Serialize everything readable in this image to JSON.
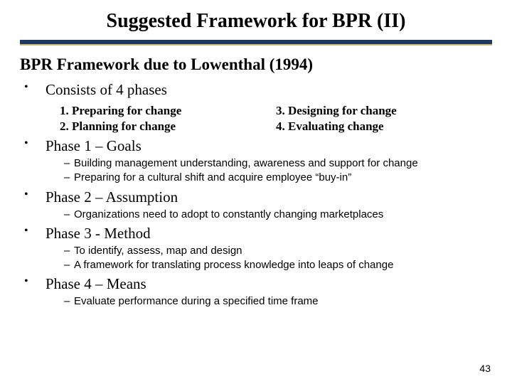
{
  "title": "Suggested Framework for BPR (II)",
  "subtitle": "BPR Framework due to Lowenthal (1994)",
  "rule": {
    "dark_color": "#1f3864",
    "light_color": "#c9b87a"
  },
  "bullets": [
    {
      "text": "Consists of 4 phases",
      "phases_left": [
        "1. Preparing for change",
        "2. Planning for change"
      ],
      "phases_right": [
        "3.  Designing for change",
        "4.  Evaluating change"
      ]
    },
    {
      "text": "Phase 1 – Goals",
      "subs": [
        "Building management understanding, awareness and support for change",
        "Preparing for a cultural shift and acquire employee “buy-in”"
      ]
    },
    {
      "text": "Phase 2 – Assumption",
      "subs": [
        "Organizations need to adopt to constantly changing marketplaces"
      ]
    },
    {
      "text": "Phase 3 - Method",
      "subs": [
        "To identify, assess, map and design",
        "A framework for translating process knowledge into leaps of change"
      ]
    },
    {
      "text": "Phase 4 – Means",
      "subs": [
        "Evaluate performance during a specified time frame"
      ]
    }
  ],
  "page_number": "43"
}
